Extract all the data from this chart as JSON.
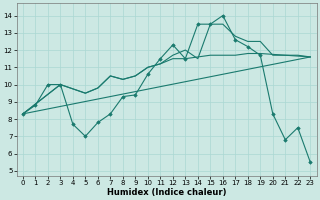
{
  "xlabel": "Humidex (Indice chaleur)",
  "bg_color": "#cce8e3",
  "grid_color": "#aad8d3",
  "line_color": "#1a7a6e",
  "xlim": [
    -0.5,
    23.5
  ],
  "ylim": [
    4.7,
    14.7
  ],
  "yticks": [
    5,
    6,
    7,
    8,
    9,
    10,
    11,
    12,
    13,
    14
  ],
  "xticks": [
    0,
    1,
    2,
    3,
    4,
    5,
    6,
    7,
    8,
    9,
    10,
    11,
    12,
    13,
    14,
    15,
    16,
    17,
    18,
    19,
    20,
    21,
    22,
    23
  ],
  "line1_x": [
    0,
    1,
    2,
    3,
    4,
    5,
    6,
    7,
    8,
    9,
    10,
    11,
    12,
    13,
    14,
    15,
    16,
    17,
    18,
    19,
    20,
    21,
    22,
    23
  ],
  "line1_y": [
    8.3,
    8.8,
    10.0,
    10.0,
    7.7,
    7.0,
    7.8,
    8.3,
    9.3,
    9.4,
    10.6,
    11.5,
    12.3,
    11.5,
    13.5,
    13.5,
    14.0,
    12.6,
    12.2,
    11.7,
    8.3,
    6.8,
    7.5,
    5.5
  ],
  "line2_x": [
    0,
    23
  ],
  "line2_y": [
    8.3,
    11.6
  ],
  "line3_x": [
    0,
    3,
    5,
    6,
    7,
    8,
    9,
    10,
    11,
    12,
    13,
    14,
    15,
    16,
    17,
    18,
    19,
    23
  ],
  "line3_y": [
    8.3,
    10.0,
    9.5,
    9.8,
    10.5,
    10.3,
    10.5,
    11.0,
    11.2,
    11.5,
    11.5,
    11.6,
    11.7,
    11.7,
    11.7,
    11.8,
    11.8,
    11.6
  ],
  "line4_x": [
    0,
    3,
    5,
    6,
    7,
    8,
    9,
    10,
    11,
    12,
    13,
    14,
    15,
    16,
    17,
    18,
    19,
    20,
    21,
    22,
    23
  ],
  "line4_y": [
    8.3,
    10.0,
    9.5,
    9.8,
    10.5,
    10.3,
    10.5,
    11.0,
    11.2,
    11.7,
    12.0,
    11.5,
    13.5,
    13.5,
    12.8,
    12.5,
    12.5,
    11.7,
    11.7,
    11.7,
    11.6
  ]
}
